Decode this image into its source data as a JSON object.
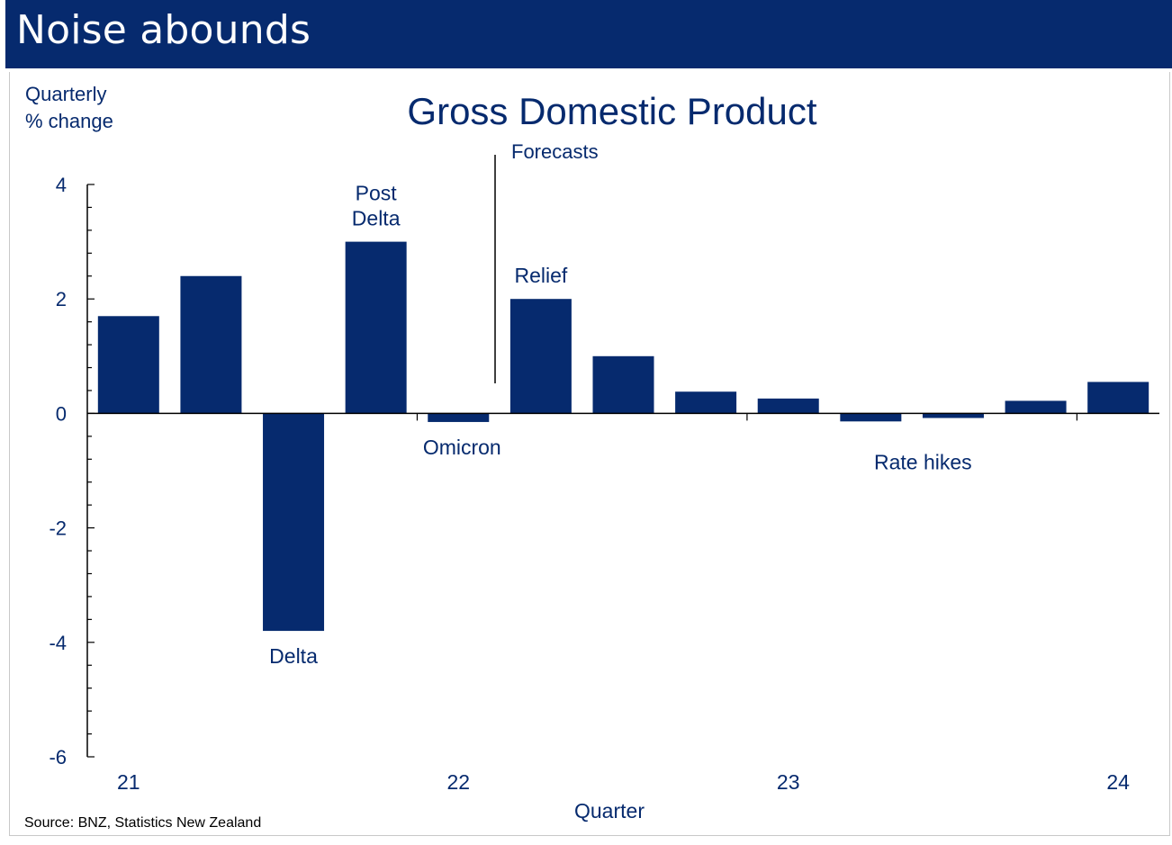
{
  "banner": {
    "title": "Noise abounds"
  },
  "chart_data": {
    "type": "bar",
    "title": "Gross Domestic Product",
    "ylabel": [
      "Quarterly",
      "% change"
    ],
    "xlabel": "Quarter",
    "ylim": [
      -6,
      4
    ],
    "yticks": [
      4,
      2,
      0,
      -2,
      -4,
      -6
    ],
    "x_tick_labels": [
      {
        "label": "21",
        "at_bar": 0
      },
      {
        "label": "22",
        "at_bar": 4
      },
      {
        "label": "23",
        "at_bar": 8
      },
      {
        "label": "24",
        "at_bar": 12
      }
    ],
    "values": [
      1.7,
      2.4,
      -3.8,
      3.0,
      -0.15,
      2.0,
      1.0,
      0.38,
      0.26,
      -0.14,
      -0.08,
      0.22,
      0.55
    ],
    "forecast_label": "Forecasts",
    "annotations": [
      {
        "text": [
          "Delta"
        ],
        "bar": 2
      },
      {
        "text": [
          "Post",
          "Delta"
        ],
        "bar": 3
      },
      {
        "text": [
          "Omicron"
        ],
        "bar": 4
      },
      {
        "text": [
          "Relief"
        ],
        "bar": 5
      },
      {
        "text": [
          "Rate hikes"
        ],
        "bar": 9
      }
    ],
    "grid": false,
    "color": "#062a6e"
  },
  "source": "Source: BNZ, Statistics New Zealand"
}
